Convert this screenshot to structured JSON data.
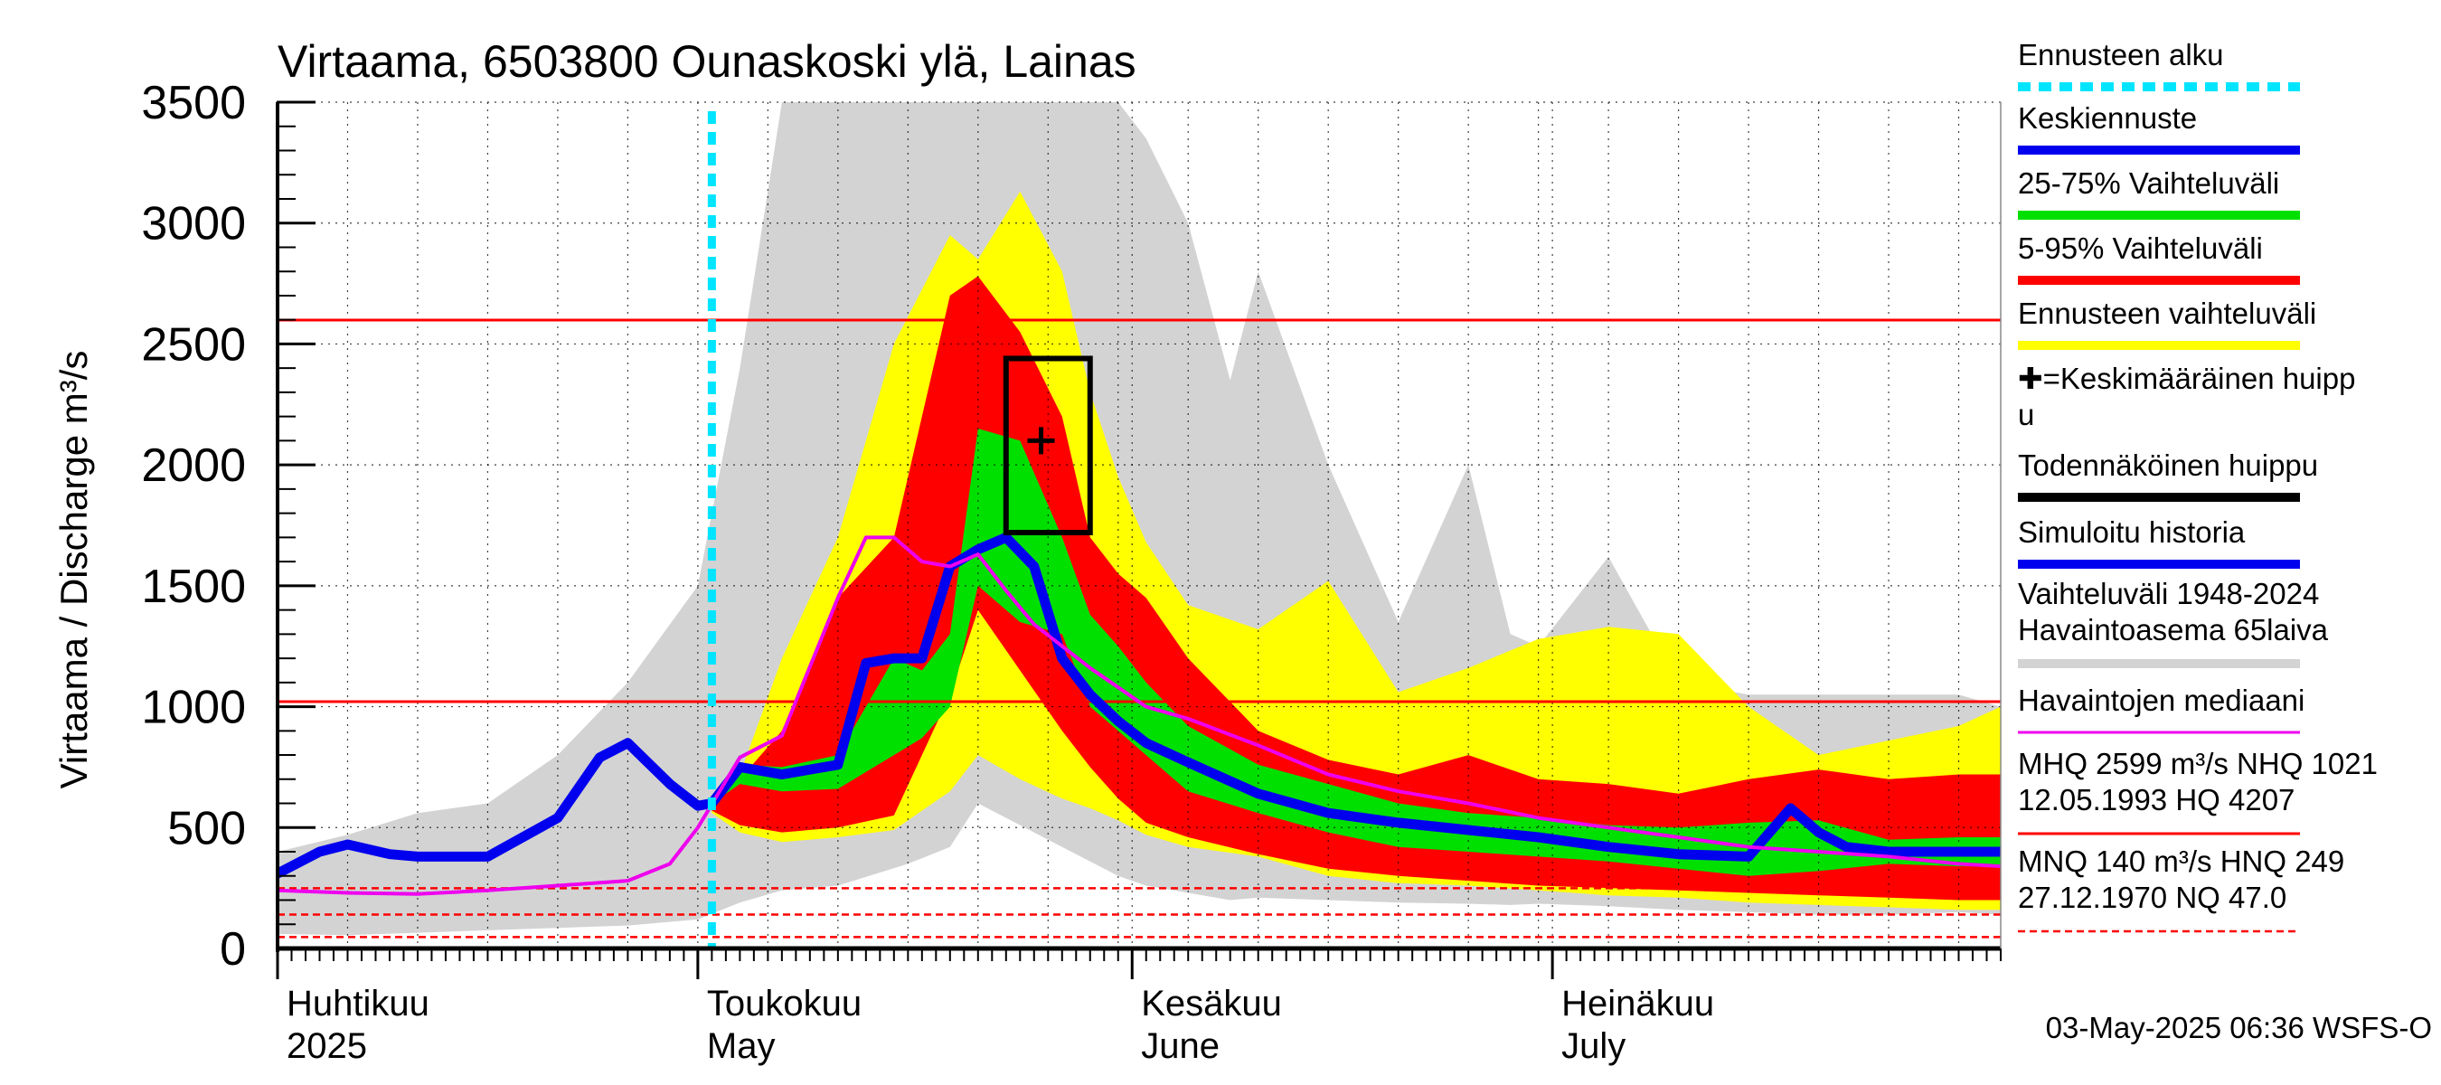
{
  "chart_data": {
    "type": "area",
    "title": "Virtaama, 6503800 Ounaskoski ylä, Lainas",
    "ylabel": "Virtaama / Discharge   m³/s",
    "ylim": [
      0,
      3500
    ],
    "yticks": [
      0,
      500,
      1000,
      1500,
      2000,
      2500,
      3000,
      3500
    ],
    "x_unit": "days since 1 April 2025",
    "xlim": [
      0,
      123
    ],
    "month_labels": [
      {
        "fi": "Huhtikuu",
        "en": "2025",
        "day": 0
      },
      {
        "fi": "Toukokuu",
        "en": "May",
        "day": 30
      },
      {
        "fi": "Kesäkuu",
        "en": "June",
        "day": 61
      },
      {
        "fi": "Heinäkuu",
        "en": "July",
        "day": 91
      }
    ],
    "forecast_start_day": 31,
    "reference_lines": {
      "MHQ": 2599,
      "NHQ": 1021,
      "MNQ": 140,
      "HNQ": 249,
      "NQ": 47.0
    },
    "mean_peak": {
      "day": 54.5,
      "value": 2100
    },
    "probable_peak_box": {
      "day_from": 52,
      "day_to": 58,
      "value_from": 1720,
      "value_to": 2440
    },
    "series": [
      {
        "name": "Vaihteluväli 1948-2024 Havaintoasema 65laiva",
        "color": "#d3d3d3",
        "kind": "band",
        "x": [
          0,
          5,
          10,
          15,
          20,
          25,
          30,
          33,
          36,
          40,
          45,
          48,
          50,
          55,
          60,
          62,
          65,
          68,
          70,
          75,
          80,
          85,
          88,
          90,
          95,
          100,
          105,
          110,
          115,
          120,
          123
        ],
        "upper": [
          400,
          470,
          560,
          600,
          800,
          1100,
          1500,
          2400,
          3500,
          3500,
          3500,
          3500,
          3500,
          3500,
          3500,
          3350,
          3000,
          2350,
          2800,
          2000,
          1350,
          2000,
          1300,
          1250,
          1620,
          1100,
          1050,
          1050,
          1050,
          1050,
          1000
        ],
        "lower": [
          60,
          55,
          65,
          75,
          85,
          95,
          120,
          190,
          240,
          260,
          350,
          420,
          600,
          450,
          300,
          260,
          230,
          200,
          210,
          200,
          190,
          185,
          180,
          185,
          175,
          160,
          150,
          140,
          140,
          150,
          140
        ]
      },
      {
        "name": "Ennusteen vaihteluväli",
        "color": "#ffff00",
        "kind": "band",
        "x": [
          31,
          33,
          36,
          40,
          44,
          48,
          50,
          53,
          56,
          58,
          60,
          62,
          65,
          70,
          75,
          80,
          85,
          90,
          95,
          100,
          105,
          110,
          115,
          120,
          123
        ],
        "upper": [
          580,
          720,
          1200,
          1700,
          2500,
          2950,
          2850,
          3130,
          2800,
          2300,
          1950,
          1680,
          1420,
          1320,
          1520,
          1060,
          1160,
          1280,
          1330,
          1300,
          1000,
          800,
          860,
          920,
          1000
        ],
        "lower": [
          560,
          480,
          440,
          460,
          490,
          650,
          800,
          700,
          620,
          580,
          530,
          470,
          420,
          380,
          300,
          270,
          260,
          240,
          220,
          210,
          190,
          180,
          170,
          160,
          160
        ]
      },
      {
        "name": "5-95% Vaihteluväli",
        "color": "#ff0000",
        "kind": "band",
        "x": [
          31,
          33,
          36,
          40,
          44,
          48,
          50,
          53,
          56,
          58,
          60,
          62,
          65,
          70,
          75,
          80,
          85,
          90,
          95,
          100,
          105,
          110,
          115,
          120,
          123
        ],
        "upper": [
          600,
          700,
          900,
          1450,
          1700,
          2700,
          2780,
          2550,
          2200,
          1700,
          1550,
          1450,
          1200,
          900,
          780,
          720,
          800,
          700,
          680,
          640,
          700,
          740,
          700,
          720,
          720
        ],
        "lower": [
          570,
          510,
          480,
          500,
          550,
          1050,
          1400,
          1150,
          900,
          750,
          620,
          520,
          460,
          390,
          330,
          300,
          280,
          260,
          250,
          240,
          230,
          220,
          210,
          200,
          200
        ]
      },
      {
        "name": "25-75% Vaihteluväli",
        "color": "#00e000",
        "kind": "band",
        "x": [
          31,
          33,
          36,
          40,
          44,
          46,
          48,
          50,
          53,
          56,
          58,
          60,
          62,
          65,
          70,
          75,
          80,
          85,
          90,
          95,
          100,
          105,
          110,
          115,
          120,
          123
        ],
        "upper": [
          620,
          760,
          750,
          800,
          1200,
          1150,
          1300,
          2150,
          2100,
          1700,
          1380,
          1250,
          1100,
          920,
          760,
          680,
          600,
          560,
          540,
          510,
          500,
          520,
          530,
          450,
          460,
          460
        ],
        "lower": [
          600,
          680,
          650,
          660,
          800,
          870,
          1000,
          1500,
          1350,
          1300,
          1000,
          900,
          800,
          650,
          560,
          480,
          420,
          400,
          380,
          360,
          330,
          300,
          320,
          350,
          340,
          340
        ]
      },
      {
        "name": "Simuloitu historia",
        "color": "#0000ee",
        "kind": "line",
        "x": [
          0,
          3,
          5,
          8,
          10,
          15,
          20,
          23,
          25,
          28,
          30,
          31
        ],
        "y": [
          310,
          400,
          430,
          390,
          380,
          380,
          540,
          790,
          850,
          680,
          590,
          600
        ]
      },
      {
        "name": "Keskiennuste",
        "color": "#0000ee",
        "kind": "line",
        "x": [
          31,
          33,
          36,
          40,
          42,
          44,
          46,
          48,
          50,
          52,
          54,
          56,
          58,
          60,
          62,
          65,
          70,
          75,
          80,
          85,
          90,
          95,
          100,
          105,
          108,
          110,
          112,
          115,
          120,
          123
        ],
        "y": [
          600,
          750,
          720,
          760,
          1180,
          1200,
          1200,
          1580,
          1650,
          1700,
          1580,
          1200,
          1050,
          940,
          850,
          770,
          640,
          560,
          520,
          490,
          460,
          420,
          390,
          380,
          580,
          480,
          420,
          400,
          400,
          400
        ]
      },
      {
        "name": "Havaintojen mediaani",
        "color": "#ee00ee",
        "kind": "line",
        "x": [
          0,
          5,
          10,
          15,
          20,
          25,
          28,
          30,
          33,
          36,
          40,
          42,
          44,
          46,
          48,
          50,
          52,
          54,
          56,
          58,
          60,
          62,
          65,
          70,
          75,
          80,
          85,
          90,
          95,
          100,
          105,
          110,
          115,
          120,
          123
        ],
        "y": [
          240,
          230,
          225,
          240,
          260,
          280,
          350,
          500,
          790,
          880,
          1450,
          1700,
          1700,
          1600,
          1580,
          1630,
          1480,
          1340,
          1250,
          1160,
          1080,
          1000,
          950,
          840,
          720,
          650,
          600,
          540,
          500,
          460,
          420,
          400,
          380,
          350,
          340
        ]
      }
    ]
  },
  "legend": {
    "items": [
      {
        "label": "Ennusteen alku",
        "color": "#00e5ff",
        "style": "dotted"
      },
      {
        "label": "Keskiennuste",
        "color": "#0000ee",
        "style": "solid"
      },
      {
        "label": "25-75% Vaihteluväli",
        "color": "#00e000",
        "style": "solid"
      },
      {
        "label": "5-95% Vaihteluväli",
        "color": "#ff0000",
        "style": "solid"
      },
      {
        "label": "Ennusteen vaihteluväli",
        "color": "#ffff00",
        "style": "solid"
      },
      {
        "label": "✚=Keskimääräinen huipp",
        "label_cont": "u",
        "color": "none",
        "style": "none"
      },
      {
        "label": "Todennäköinen huippu",
        "color": "#000000",
        "style": "solid"
      },
      {
        "label": "Simuloitu historia",
        "color": "#0000ee",
        "style": "solid"
      },
      {
        "label": "Vaihteluväli 1948-2024",
        "label_cont": " Havaintoasema 65laiva",
        "color": "#d3d3d3",
        "style": "solid"
      },
      {
        "label": "Havaintojen mediaani",
        "color": "#ee00ee",
        "style": "thin"
      },
      {
        "label": "MHQ 2599 m³/s NHQ 1021",
        "label_cont": "12.05.1993 HQ 4207",
        "color": "#ff0000",
        "style": "thin"
      },
      {
        "label": "MNQ  140 m³/s HNQ  249",
        "label_cont": "27.12.1970 NQ 47.0",
        "color": "#ff0000",
        "style": "dashed"
      }
    ]
  },
  "timestamp": "03-May-2025 06:36 WSFS-O"
}
